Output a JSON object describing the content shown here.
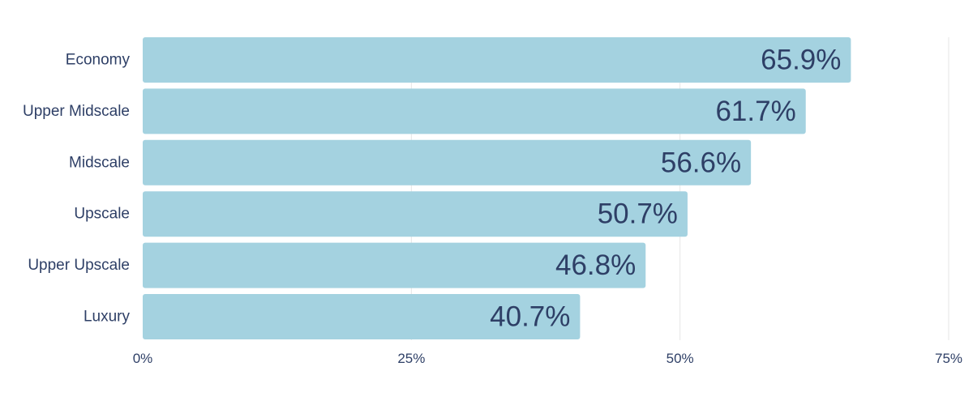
{
  "chart_data": {
    "type": "bar",
    "orientation": "horizontal",
    "title": "",
    "xlabel": "",
    "ylabel": "",
    "categories": [
      "Economy",
      "Upper Midscale",
      "Midscale",
      "Upscale",
      "Upper Upscale",
      "Luxury"
    ],
    "values": [
      65.9,
      61.7,
      56.6,
      50.7,
      46.8,
      40.7
    ],
    "value_labels": [
      "65.9%",
      "61.7%",
      "56.6%",
      "50.7%",
      "46.8%",
      "40.7%"
    ],
    "xlim": [
      0,
      75
    ],
    "ticks": [
      0,
      25,
      50,
      75
    ],
    "tick_labels": [
      "0%",
      "25%",
      "50%",
      "75%"
    ],
    "grid": true,
    "legend": "none",
    "colors": {
      "bar": "#a4d2e0",
      "text": "#2e3f66",
      "grid": "#e6e6e6"
    }
  }
}
